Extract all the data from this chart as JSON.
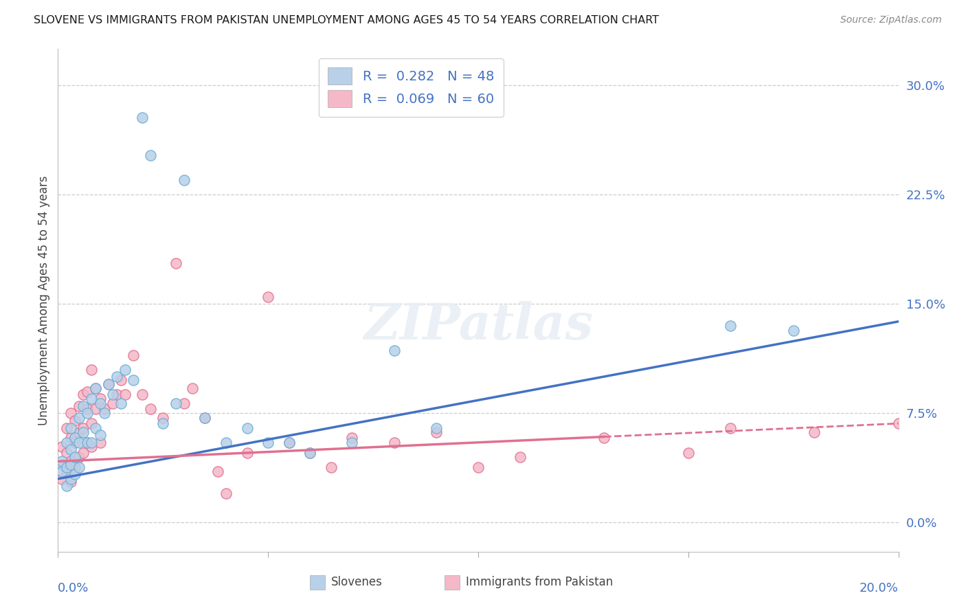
{
  "title": "SLOVENE VS IMMIGRANTS FROM PAKISTAN UNEMPLOYMENT AMONG AGES 45 TO 54 YEARS CORRELATION CHART",
  "source": "Source: ZipAtlas.com",
  "ylabel": "Unemployment Among Ages 45 to 54 years",
  "yticks_labels": [
    "0.0%",
    "7.5%",
    "15.0%",
    "22.5%",
    "30.0%"
  ],
  "ytick_vals": [
    0.0,
    0.075,
    0.15,
    0.225,
    0.3
  ],
  "xlim": [
    0.0,
    0.2
  ],
  "ylim": [
    -0.02,
    0.325
  ],
  "slovene_color": "#b8d0e8",
  "slovene_edge_color": "#6baed6",
  "slovene_line_color": "#4472c4",
  "pakistan_color": "#f4b8c8",
  "pakistan_edge_color": "#e07090",
  "pakistan_line_color": "#e07090",
  "background_color": "#ffffff",
  "grid_color": "#cccccc",
  "slovene_R": 0.282,
  "slovene_N": 48,
  "pakistan_R": 0.069,
  "pakistan_N": 60,
  "blue_line_y0": 0.03,
  "blue_line_y1": 0.138,
  "pink_line_y0": 0.042,
  "pink_line_y1": 0.068,
  "slovene_x": [
    0.001,
    0.001,
    0.002,
    0.002,
    0.002,
    0.003,
    0.003,
    0.003,
    0.003,
    0.004,
    0.004,
    0.004,
    0.005,
    0.005,
    0.005,
    0.006,
    0.006,
    0.007,
    0.007,
    0.008,
    0.008,
    0.009,
    0.009,
    0.01,
    0.01,
    0.011,
    0.012,
    0.013,
    0.014,
    0.015,
    0.016,
    0.018,
    0.02,
    0.022,
    0.025,
    0.028,
    0.03,
    0.035,
    0.04,
    0.045,
    0.05,
    0.055,
    0.06,
    0.07,
    0.08,
    0.09,
    0.16,
    0.175
  ],
  "slovene_y": [
    0.035,
    0.042,
    0.055,
    0.038,
    0.025,
    0.05,
    0.065,
    0.04,
    0.03,
    0.058,
    0.045,
    0.033,
    0.072,
    0.055,
    0.038,
    0.08,
    0.062,
    0.075,
    0.055,
    0.085,
    0.055,
    0.092,
    0.065,
    0.082,
    0.06,
    0.075,
    0.095,
    0.088,
    0.1,
    0.082,
    0.105,
    0.098,
    0.278,
    0.252,
    0.068,
    0.082,
    0.235,
    0.072,
    0.055,
    0.065,
    0.055,
    0.055,
    0.048,
    0.055,
    0.118,
    0.065,
    0.135,
    0.132
  ],
  "pakistan_x": [
    0.001,
    0.001,
    0.001,
    0.002,
    0.002,
    0.002,
    0.003,
    0.003,
    0.003,
    0.003,
    0.004,
    0.004,
    0.004,
    0.005,
    0.005,
    0.005,
    0.006,
    0.006,
    0.006,
    0.007,
    0.007,
    0.007,
    0.008,
    0.008,
    0.008,
    0.009,
    0.009,
    0.01,
    0.01,
    0.011,
    0.012,
    0.013,
    0.014,
    0.015,
    0.016,
    0.018,
    0.02,
    0.022,
    0.025,
    0.028,
    0.03,
    0.032,
    0.035,
    0.038,
    0.04,
    0.045,
    0.05,
    0.055,
    0.06,
    0.065,
    0.07,
    0.08,
    0.09,
    0.1,
    0.11,
    0.13,
    0.15,
    0.16,
    0.18,
    0.2
  ],
  "pakistan_y": [
    0.04,
    0.052,
    0.03,
    0.065,
    0.048,
    0.035,
    0.058,
    0.075,
    0.042,
    0.028,
    0.07,
    0.055,
    0.038,
    0.08,
    0.062,
    0.045,
    0.088,
    0.065,
    0.048,
    0.078,
    0.055,
    0.09,
    0.068,
    0.105,
    0.052,
    0.078,
    0.092,
    0.085,
    0.055,
    0.078,
    0.095,
    0.082,
    0.088,
    0.098,
    0.088,
    0.115,
    0.088,
    0.078,
    0.072,
    0.178,
    0.082,
    0.092,
    0.072,
    0.035,
    0.02,
    0.048,
    0.155,
    0.055,
    0.048,
    0.038,
    0.058,
    0.055,
    0.062,
    0.038,
    0.045,
    0.058,
    0.048,
    0.065,
    0.062,
    0.068
  ]
}
